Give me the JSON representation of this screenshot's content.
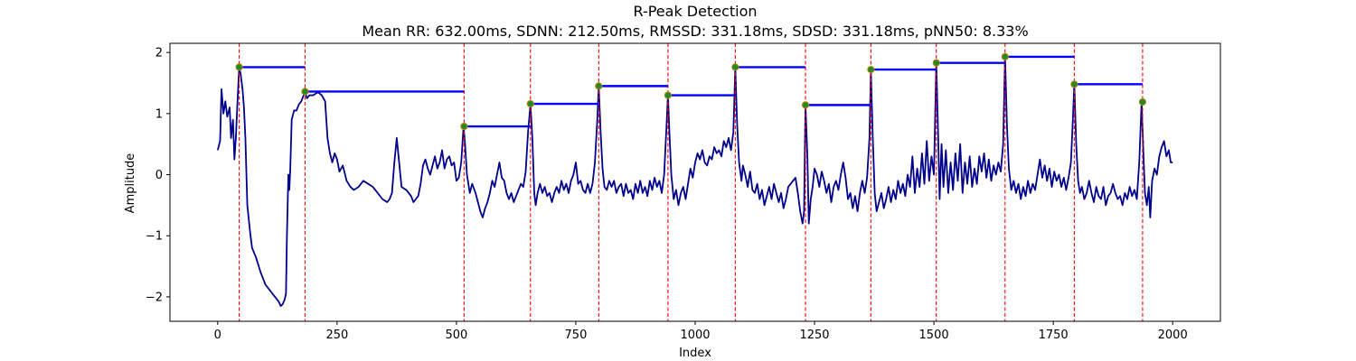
{
  "chart_data": {
    "type": "line",
    "title": "R-Peak Detection",
    "subtitle": "Mean RR: 632.00ms, SDNN: 212.50ms, RMSSD: 331.18ms, SDSD: 331.18ms, pNN50: 8.33%",
    "xlabel": "Index",
    "ylabel": "Amplitude",
    "xlim": [
      -100,
      2100
    ],
    "ylim": [
      -2.4,
      2.15
    ],
    "xticks": [
      0,
      250,
      500,
      750,
      1000,
      1250,
      1500,
      1750,
      2000
    ],
    "yticks": [
      -2,
      -1,
      0,
      1,
      2
    ],
    "grid": false,
    "colors": {
      "signal": "#00008b",
      "peak_marker": "#228b22",
      "peak_marker_edge": "#b8860b",
      "peak_line": "#ff0000",
      "rr_segment": "#0000ff"
    },
    "signal_keypoints": [
      [
        0,
        0.4
      ],
      [
        5,
        0.55
      ],
      [
        8,
        1.4
      ],
      [
        12,
        1.0
      ],
      [
        16,
        1.2
      ],
      [
        20,
        0.95
      ],
      [
        25,
        1.1
      ],
      [
        28,
        0.6
      ],
      [
        32,
        0.9
      ],
      [
        35,
        0.25
      ],
      [
        38,
        0.6
      ],
      [
        40,
        0.95
      ],
      [
        43,
        1.45
      ],
      [
        45,
        1.75
      ],
      [
        48,
        1.65
      ],
      [
        52,
        1.4
      ],
      [
        55,
        1.1
      ],
      [
        58,
        0.6
      ],
      [
        62,
        -0.5
      ],
      [
        68,
        -0.95
      ],
      [
        72,
        -1.2
      ],
      [
        80,
        -1.35
      ],
      [
        90,
        -1.6
      ],
      [
        100,
        -1.8
      ],
      [
        110,
        -1.9
      ],
      [
        120,
        -2.0
      ],
      [
        128,
        -2.08
      ],
      [
        132,
        -2.15
      ],
      [
        136,
        -2.12
      ],
      [
        140,
        -2.05
      ],
      [
        143,
        -1.95
      ],
      [
        145,
        -1.0
      ],
      [
        148,
        0.0
      ],
      [
        150,
        -0.25
      ],
      [
        152,
        0.1
      ],
      [
        155,
        0.9
      ],
      [
        160,
        1.05
      ],
      [
        165,
        1.05
      ],
      [
        170,
        1.15
      ],
      [
        175,
        1.2
      ],
      [
        180,
        1.3
      ],
      [
        183,
        1.35
      ],
      [
        187,
        1.25
      ],
      [
        192,
        1.3
      ],
      [
        200,
        1.3
      ],
      [
        210,
        1.35
      ],
      [
        218,
        1.3
      ],
      [
        225,
        1.2
      ],
      [
        230,
        0.6
      ],
      [
        235,
        0.35
      ],
      [
        240,
        0.2
      ],
      [
        245,
        0.35
      ],
      [
        250,
        0.25
      ],
      [
        255,
        0.05
      ],
      [
        262,
        0.15
      ],
      [
        270,
        -0.1
      ],
      [
        278,
        -0.2
      ],
      [
        285,
        -0.25
      ],
      [
        295,
        -0.2
      ],
      [
        305,
        -0.1
      ],
      [
        315,
        -0.15
      ],
      [
        325,
        -0.2
      ],
      [
        335,
        -0.3
      ],
      [
        345,
        -0.4
      ],
      [
        355,
        -0.45
      ],
      [
        360,
        -0.4
      ],
      [
        365,
        -0.3
      ],
      [
        370,
        0.2
      ],
      [
        375,
        0.6
      ],
      [
        380,
        0.2
      ],
      [
        385,
        -0.2
      ],
      [
        395,
        -0.25
      ],
      [
        405,
        -0.35
      ],
      [
        410,
        -0.45
      ],
      [
        415,
        -0.4
      ],
      [
        420,
        -0.35
      ],
      [
        425,
        -0.15
      ],
      [
        430,
        0.15
      ],
      [
        435,
        0.25
      ],
      [
        440,
        0.1
      ],
      [
        445,
        0.0
      ],
      [
        450,
        0.15
      ],
      [
        455,
        0.3
      ],
      [
        460,
        0.1
      ],
      [
        465,
        0.2
      ],
      [
        470,
        0.4
      ],
      [
        475,
        0.1
      ],
      [
        480,
        0.25
      ],
      [
        485,
        0.3
      ],
      [
        490,
        0.15
      ],
      [
        495,
        0.2
      ],
      [
        500,
        -0.1
      ],
      [
        505,
        -0.05
      ],
      [
        510,
        0.2
      ],
      [
        515,
        0.8
      ],
      [
        518,
        0.5
      ],
      [
        522,
        0.0
      ],
      [
        528,
        -0.3
      ],
      [
        533,
        -0.15
      ],
      [
        540,
        -0.3
      ],
      [
        550,
        -0.6
      ],
      [
        555,
        -0.7
      ],
      [
        560,
        -0.55
      ],
      [
        565,
        -0.45
      ],
      [
        570,
        -0.3
      ],
      [
        575,
        -0.1
      ],
      [
        580,
        -0.2
      ],
      [
        585,
        0.0
      ],
      [
        590,
        0.2
      ],
      [
        595,
        -0.05
      ],
      [
        600,
        -0.1
      ],
      [
        605,
        -0.3
      ],
      [
        610,
        -0.4
      ],
      [
        615,
        -0.3
      ],
      [
        620,
        -0.45
      ],
      [
        625,
        -0.35
      ],
      [
        630,
        -0.25
      ],
      [
        635,
        -0.15
      ],
      [
        640,
        -0.2
      ],
      [
        645,
        0.05
      ],
      [
        650,
        0.7
      ],
      [
        655,
        1.15
      ],
      [
        659,
        0.6
      ],
      [
        663,
        -0.3
      ],
      [
        666,
        -0.5
      ],
      [
        670,
        -0.3
      ],
      [
        675,
        -0.15
      ],
      [
        680,
        -0.3
      ],
      [
        685,
        -0.2
      ],
      [
        690,
        -0.35
      ],
      [
        695,
        -0.3
      ],
      [
        700,
        -0.45
      ],
      [
        705,
        -0.3
      ],
      [
        710,
        -0.2
      ],
      [
        715,
        -0.3
      ],
      [
        720,
        -0.1
      ],
      [
        725,
        -0.25
      ],
      [
        730,
        -0.15
      ],
      [
        735,
        -0.3
      ],
      [
        740,
        -0.1
      ],
      [
        745,
        0.0
      ],
      [
        750,
        0.2
      ],
      [
        755,
        -0.15
      ],
      [
        760,
        -0.1
      ],
      [
        765,
        -0.25
      ],
      [
        770,
        -0.3
      ],
      [
        775,
        -0.15
      ],
      [
        780,
        -0.3
      ],
      [
        785,
        -0.15
      ],
      [
        790,
        0.2
      ],
      [
        795,
        0.9
      ],
      [
        798,
        1.45
      ],
      [
        802,
        0.7
      ],
      [
        806,
        0.1
      ],
      [
        810,
        -0.2
      ],
      [
        815,
        -0.25
      ],
      [
        820,
        -0.1
      ],
      [
        825,
        -0.2
      ],
      [
        830,
        -0.1
      ],
      [
        835,
        -0.3
      ],
      [
        840,
        -0.2
      ],
      [
        845,
        -0.15
      ],
      [
        850,
        -0.35
      ],
      [
        855,
        -0.15
      ],
      [
        860,
        -0.3
      ],
      [
        865,
        -0.25
      ],
      [
        870,
        -0.4
      ],
      [
        875,
        -0.15
      ],
      [
        880,
        -0.3
      ],
      [
        885,
        -0.1
      ],
      [
        890,
        -0.3
      ],
      [
        895,
        -0.2
      ],
      [
        900,
        -0.35
      ],
      [
        905,
        -0.1
      ],
      [
        910,
        -0.25
      ],
      [
        915,
        -0.05
      ],
      [
        920,
        -0.2
      ],
      [
        925,
        -0.1
      ],
      [
        930,
        -0.3
      ],
      [
        935,
        0.0
      ],
      [
        940,
        0.8
      ],
      [
        943,
        1.3
      ],
      [
        946,
        0.7
      ],
      [
        950,
        0.0
      ],
      [
        955,
        -0.4
      ],
      [
        960,
        -0.25
      ],
      [
        965,
        -0.5
      ],
      [
        970,
        -0.3
      ],
      [
        975,
        -0.2
      ],
      [
        980,
        -0.4
      ],
      [
        985,
        -0.15
      ],
      [
        990,
        0.1
      ],
      [
        995,
        -0.05
      ],
      [
        1000,
        0.2
      ],
      [
        1005,
        0.35
      ],
      [
        1010,
        0.25
      ],
      [
        1015,
        0.4
      ],
      [
        1020,
        0.2
      ],
      [
        1025,
        0.15
      ],
      [
        1030,
        0.3
      ],
      [
        1035,
        0.25
      ],
      [
        1040,
        0.45
      ],
      [
        1045,
        0.35
      ],
      [
        1050,
        0.4
      ],
      [
        1055,
        0.3
      ],
      [
        1060,
        0.55
      ],
      [
        1065,
        0.45
      ],
      [
        1070,
        0.6
      ],
      [
        1075,
        0.4
      ],
      [
        1080,
        0.7
      ],
      [
        1084,
        1.75
      ],
      [
        1088,
        0.8
      ],
      [
        1092,
        0.2
      ],
      [
        1097,
        -0.1
      ],
      [
        1100,
        0.15
      ],
      [
        1105,
        0.0
      ],
      [
        1110,
        -0.2
      ],
      [
        1115,
        0.05
      ],
      [
        1120,
        -0.25
      ],
      [
        1125,
        -0.3
      ],
      [
        1130,
        -0.15
      ],
      [
        1135,
        -0.4
      ],
      [
        1140,
        -0.25
      ],
      [
        1145,
        -0.5
      ],
      [
        1150,
        -0.35
      ],
      [
        1155,
        -0.2
      ],
      [
        1160,
        -0.4
      ],
      [
        1165,
        -0.15
      ],
      [
        1170,
        -0.3
      ],
      [
        1175,
        -0.45
      ],
      [
        1180,
        -0.3
      ],
      [
        1185,
        -0.55
      ],
      [
        1190,
        -0.4
      ],
      [
        1195,
        -0.2
      ],
      [
        1200,
        -0.15
      ],
      [
        1205,
        -0.1
      ],
      [
        1210,
        -0.05
      ],
      [
        1215,
        -0.3
      ],
      [
        1220,
        -0.6
      ],
      [
        1225,
        -0.8
      ],
      [
        1228,
        -0.6
      ],
      [
        1231,
        1.15
      ],
      [
        1235,
        0.3
      ],
      [
        1238,
        -0.8
      ],
      [
        1242,
        -0.4
      ],
      [
        1246,
        -0.2
      ],
      [
        1250,
        0.1
      ],
      [
        1255,
        0.0
      ],
      [
        1260,
        -0.2
      ],
      [
        1265,
        0.05
      ],
      [
        1270,
        -0.1
      ],
      [
        1275,
        -0.3
      ],
      [
        1280,
        -0.15
      ],
      [
        1285,
        -0.45
      ],
      [
        1290,
        -0.2
      ],
      [
        1295,
        -0.1
      ],
      [
        1300,
        -0.25
      ],
      [
        1305,
        0.0
      ],
      [
        1310,
        0.2
      ],
      [
        1315,
        -0.05
      ],
      [
        1320,
        -0.4
      ],
      [
        1325,
        -0.3
      ],
      [
        1330,
        -0.55
      ],
      [
        1335,
        -0.35
      ],
      [
        1340,
        -0.6
      ],
      [
        1345,
        -0.3
      ],
      [
        1350,
        -0.1
      ],
      [
        1355,
        -0.3
      ],
      [
        1360,
        -0.05
      ],
      [
        1365,
        0.6
      ],
      [
        1368,
        1.7
      ],
      [
        1372,
        0.6
      ],
      [
        1376,
        -0.3
      ],
      [
        1380,
        -0.6
      ],
      [
        1385,
        -0.45
      ],
      [
        1390,
        -0.3
      ],
      [
        1395,
        -0.55
      ],
      [
        1400,
        -0.4
      ],
      [
        1405,
        -0.2
      ],
      [
        1410,
        -0.45
      ],
      [
        1415,
        -0.25
      ],
      [
        1420,
        -0.4
      ],
      [
        1425,
        -0.1
      ],
      [
        1430,
        -0.3
      ],
      [
        1435,
        -0.15
      ],
      [
        1440,
        -0.35
      ],
      [
        1445,
        0.0
      ],
      [
        1450,
        -0.2
      ],
      [
        1455,
        0.3
      ],
      [
        1460,
        -0.3
      ],
      [
        1465,
        0.1
      ],
      [
        1470,
        -0.2
      ],
      [
        1475,
        0.35
      ],
      [
        1480,
        -0.15
      ],
      [
        1485,
        0.55
      ],
      [
        1490,
        -0.1
      ],
      [
        1495,
        0.3
      ],
      [
        1500,
        0.0
      ],
      [
        1505,
        1.82
      ],
      [
        1509,
        0.6
      ],
      [
        1512,
        -0.4
      ],
      [
        1516,
        0.5
      ],
      [
        1520,
        -0.2
      ],
      [
        1525,
        0.4
      ],
      [
        1530,
        -0.3
      ],
      [
        1535,
        0.2
      ],
      [
        1540,
        -0.25
      ],
      [
        1545,
        0.35
      ],
      [
        1550,
        -0.1
      ],
      [
        1555,
        0.5
      ],
      [
        1560,
        -0.3
      ],
      [
        1565,
        0.2
      ],
      [
        1570,
        -0.15
      ],
      [
        1575,
        0.3
      ],
      [
        1580,
        -0.2
      ],
      [
        1585,
        0.1
      ],
      [
        1590,
        -0.15
      ],
      [
        1595,
        0.3
      ],
      [
        1600,
        0.05
      ],
      [
        1605,
        0.35
      ],
      [
        1610,
        -0.05
      ],
      [
        1615,
        0.25
      ],
      [
        1620,
        -0.1
      ],
      [
        1625,
        0.15
      ],
      [
        1630,
        0.0
      ],
      [
        1635,
        0.2
      ],
      [
        1640,
        0.05
      ],
      [
        1645,
        0.5
      ],
      [
        1649,
        1.93
      ],
      [
        1653,
        0.8
      ],
      [
        1657,
        0.1
      ],
      [
        1662,
        -0.25
      ],
      [
        1667,
        -0.1
      ],
      [
        1672,
        -0.3
      ],
      [
        1677,
        -0.15
      ],
      [
        1682,
        -0.4
      ],
      [
        1687,
        -0.2
      ],
      [
        1692,
        -0.35
      ],
      [
        1697,
        -0.1
      ],
      [
        1702,
        -0.3
      ],
      [
        1707,
        -0.15
      ],
      [
        1712,
        -0.25
      ],
      [
        1717,
        0.0
      ],
      [
        1722,
        0.25
      ],
      [
        1727,
        -0.05
      ],
      [
        1732,
        0.15
      ],
      [
        1737,
        -0.1
      ],
      [
        1742,
        0.1
      ],
      [
        1747,
        -0.2
      ],
      [
        1752,
        0.05
      ],
      [
        1757,
        -0.1
      ],
      [
        1762,
        0.0
      ],
      [
        1767,
        -0.2
      ],
      [
        1772,
        -0.05
      ],
      [
        1777,
        -0.25
      ],
      [
        1782,
        -0.05
      ],
      [
        1787,
        0.2
      ],
      [
        1791,
        0.9
      ],
      [
        1794,
        1.48
      ],
      [
        1798,
        0.5
      ],
      [
        1802,
        -0.1
      ],
      [
        1806,
        -0.3
      ],
      [
        1810,
        -0.2
      ],
      [
        1815,
        -0.4
      ],
      [
        1820,
        -0.3
      ],
      [
        1825,
        -0.1
      ],
      [
        1830,
        -0.3
      ],
      [
        1835,
        -0.45
      ],
      [
        1840,
        -0.2
      ],
      [
        1845,
        -0.35
      ],
      [
        1850,
        -0.4
      ],
      [
        1855,
        -0.2
      ],
      [
        1860,
        -0.5
      ],
      [
        1865,
        -0.35
      ],
      [
        1870,
        -0.3
      ],
      [
        1875,
        -0.15
      ],
      [
        1880,
        -0.3
      ],
      [
        1885,
        -0.4
      ],
      [
        1890,
        -0.35
      ],
      [
        1895,
        -0.5
      ],
      [
        1900,
        -0.3
      ],
      [
        1905,
        -0.4
      ],
      [
        1910,
        -0.2
      ],
      [
        1915,
        -0.35
      ],
      [
        1920,
        -0.25
      ],
      [
        1925,
        -0.4
      ],
      [
        1930,
        0.2
      ],
      [
        1935,
        1.19
      ],
      [
        1939,
        0.3
      ],
      [
        1942,
        -0.3
      ],
      [
        1946,
        -0.5
      ],
      [
        1950,
        -0.2
      ],
      [
        1953,
        -0.7
      ],
      [
        1957,
        -0.1
      ],
      [
        1962,
        0.1
      ],
      [
        1967,
        0.0
      ],
      [
        1972,
        0.3
      ],
      [
        1977,
        0.45
      ],
      [
        1982,
        0.55
      ],
      [
        1987,
        0.3
      ],
      [
        1992,
        0.4
      ],
      [
        1996,
        0.2
      ],
      [
        2000,
        0.2
      ]
    ],
    "r_peaks": [
      [
        45,
        1.76
      ],
      [
        183,
        1.36
      ],
      [
        516,
        0.79
      ],
      [
        655,
        1.16
      ],
      [
        798,
        1.45
      ],
      [
        943,
        1.3
      ],
      [
        1084,
        1.76
      ],
      [
        1231,
        1.14
      ],
      [
        1368,
        1.72
      ],
      [
        1505,
        1.83
      ],
      [
        1649,
        1.93
      ],
      [
        1794,
        1.48
      ],
      [
        1937,
        1.19
      ]
    ],
    "rr_segments": [
      [
        45,
        183,
        1.76
      ],
      [
        183,
        516,
        1.36
      ],
      [
        516,
        655,
        0.79
      ],
      [
        655,
        798,
        1.16
      ],
      [
        798,
        943,
        1.45
      ],
      [
        943,
        1084,
        1.3
      ],
      [
        1084,
        1231,
        1.76
      ],
      [
        1231,
        1368,
        1.14
      ],
      [
        1368,
        1505,
        1.72
      ],
      [
        1505,
        1649,
        1.83
      ],
      [
        1649,
        1794,
        1.93
      ],
      [
        1794,
        1937,
        1.48
      ]
    ]
  }
}
